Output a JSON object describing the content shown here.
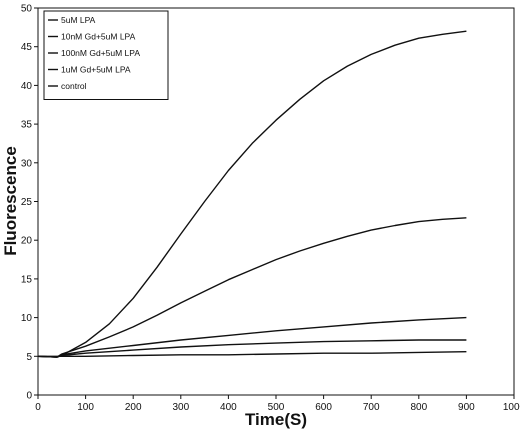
{
  "chart_data": {
    "type": "line",
    "title": "",
    "xlabel": "Time(S)",
    "ylabel": "Fluorescence",
    "xlim": [
      0,
      1000
    ],
    "ylim": [
      0,
      50
    ],
    "xticks": [
      "0",
      "100",
      "200",
      "300",
      "400",
      "500",
      "600",
      "700",
      "800",
      "900",
      "1000"
    ],
    "yticks": [
      "0",
      "5",
      "10",
      "15",
      "20",
      "25",
      "30",
      "35",
      "40",
      "45",
      "50"
    ],
    "grid": false,
    "legend_position": "top-left",
    "series": [
      {
        "name": "5uM LPA",
        "x": [
          0,
          40,
          50,
          100,
          150,
          200,
          250,
          300,
          350,
          400,
          450,
          500,
          550,
          600,
          650,
          700,
          750,
          800,
          850,
          900
        ],
        "y": [
          5.0,
          4.9,
          5.1,
          6.8,
          9.2,
          12.5,
          16.5,
          20.8,
          25.0,
          29.0,
          32.5,
          35.5,
          38.2,
          40.6,
          42.5,
          44.0,
          45.2,
          46.1,
          46.6,
          47.0
        ]
      },
      {
        "name": "10nM Gd+5uM LPA",
        "x": [
          0,
          40,
          50,
          100,
          150,
          200,
          250,
          300,
          350,
          400,
          450,
          500,
          550,
          600,
          650,
          700,
          750,
          800,
          850,
          900
        ],
        "y": [
          5.0,
          4.9,
          5.3,
          6.3,
          7.5,
          8.8,
          10.3,
          11.9,
          13.4,
          14.9,
          16.2,
          17.5,
          18.6,
          19.6,
          20.5,
          21.3,
          21.9,
          22.4,
          22.7,
          22.9
        ]
      },
      {
        "name": "100nM Gd+5uM LPA",
        "x": [
          0,
          40,
          50,
          100,
          200,
          300,
          400,
          500,
          600,
          700,
          800,
          900
        ],
        "y": [
          5.0,
          4.9,
          5.2,
          5.7,
          6.4,
          7.1,
          7.7,
          8.3,
          8.8,
          9.3,
          9.7,
          10.0
        ]
      },
      {
        "name": "1uM Gd+5uM LPA",
        "x": [
          0,
          40,
          50,
          100,
          200,
          300,
          400,
          500,
          600,
          700,
          800,
          900
        ],
        "y": [
          5.0,
          4.9,
          5.1,
          5.4,
          5.8,
          6.2,
          6.5,
          6.7,
          6.9,
          7.0,
          7.1,
          7.1
        ]
      },
      {
        "name": "control",
        "x": [
          0,
          100,
          200,
          300,
          400,
          500,
          600,
          700,
          800,
          900
        ],
        "y": [
          5.0,
          5.0,
          5.1,
          5.2,
          5.2,
          5.3,
          5.4,
          5.4,
          5.5,
          5.6
        ]
      }
    ]
  }
}
